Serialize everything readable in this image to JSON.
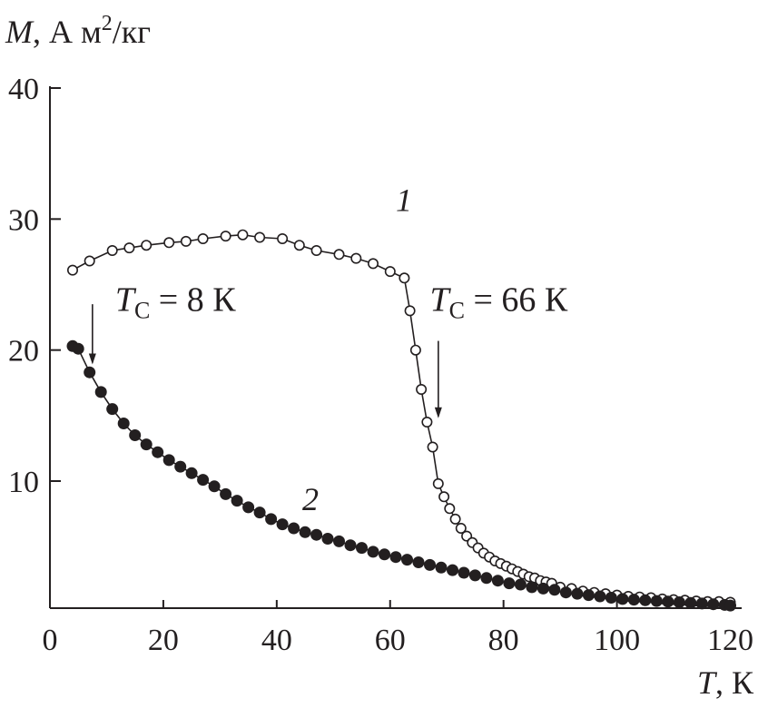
{
  "chart_data": {
    "type": "scatter",
    "ylabel": {
      "symbol": "M",
      "rest": ", А м",
      "sup": "2",
      "tail": "/кг"
    },
    "xlabel": {
      "symbol": "T",
      "rest": ", К"
    },
    "xlim": [
      0,
      122
    ],
    "ylim": [
      0.3,
      40
    ],
    "xticks": [
      0,
      20,
      40,
      60,
      80,
      100,
      120
    ],
    "yticks": [
      10,
      20,
      30,
      40
    ],
    "grid": false,
    "legend": "none",
    "series": [
      {
        "name": "1",
        "marker": "open-circle",
        "line": true,
        "x": [
          4,
          7,
          11,
          14,
          17,
          21,
          24,
          27,
          31,
          34,
          37,
          41,
          44,
          47,
          51,
          54,
          57,
          60,
          62.5,
          63.5,
          64.5,
          65.5,
          66.5,
          67.5,
          68.5,
          69.5,
          70.5,
          71.5,
          72.5,
          73.5,
          74.5,
          75.5,
          76.5,
          77.5,
          78.5,
          79.5,
          80.5,
          81.5,
          82.5,
          83.5,
          84.5,
          85.5,
          86.5,
          87.5,
          88.5,
          90,
          92,
          94,
          96,
          98,
          100,
          102,
          104,
          106,
          108,
          110,
          112,
          114,
          116,
          118,
          120
        ],
        "y": [
          26.1,
          26.8,
          27.6,
          27.8,
          28.0,
          28.2,
          28.3,
          28.5,
          28.7,
          28.8,
          28.6,
          28.5,
          28.0,
          27.6,
          27.3,
          27.0,
          26.6,
          26.0,
          25.5,
          23.0,
          20.0,
          17.0,
          14.5,
          12.6,
          9.8,
          8.8,
          7.9,
          7.1,
          6.4,
          5.8,
          5.3,
          4.9,
          4.5,
          4.2,
          3.9,
          3.7,
          3.5,
          3.3,
          3.1,
          2.9,
          2.7,
          2.6,
          2.4,
          2.3,
          2.2,
          1.9,
          1.8,
          1.6,
          1.5,
          1.4,
          1.3,
          1.2,
          1.15,
          1.1,
          1.0,
          0.95,
          0.9,
          0.85,
          0.8,
          0.8,
          0.75
        ],
        "labels": [
          {
            "text": "1",
            "x": 61,
            "y": 30.6
          }
        ]
      },
      {
        "name": "2",
        "marker": "filled-circle",
        "line": true,
        "x": [
          4,
          5,
          7,
          9,
          11,
          13,
          15,
          17,
          19,
          21,
          23,
          25,
          27,
          29,
          31,
          33,
          35,
          37,
          39,
          41,
          43,
          45,
          47,
          49,
          51,
          53,
          55,
          57,
          59,
          61,
          63,
          65,
          67,
          69,
          71,
          73,
          75,
          77,
          79,
          81,
          83,
          85,
          87,
          89,
          91,
          93,
          95,
          97,
          99,
          101,
          103,
          105,
          107,
          109,
          111,
          113,
          115,
          117,
          119,
          120
        ],
        "y": [
          20.3,
          20.1,
          18.3,
          16.8,
          15.5,
          14.4,
          13.5,
          12.8,
          12.2,
          11.6,
          11.1,
          10.6,
          10.1,
          9.6,
          9.0,
          8.5,
          8.0,
          7.6,
          7.1,
          6.7,
          6.4,
          6.1,
          5.9,
          5.6,
          5.4,
          5.1,
          4.9,
          4.6,
          4.4,
          4.2,
          4.0,
          3.8,
          3.6,
          3.4,
          3.2,
          3.0,
          2.8,
          2.6,
          2.4,
          2.2,
          2.1,
          1.9,
          1.8,
          1.7,
          1.5,
          1.4,
          1.3,
          1.2,
          1.1,
          1.0,
          0.95,
          0.9,
          0.85,
          0.8,
          0.75,
          0.7,
          0.65,
          0.6,
          0.55,
          0.5
        ],
        "labels": [
          {
            "text": "2",
            "x": 44.5,
            "y": 7.8
          }
        ]
      }
    ],
    "annotations": [
      {
        "symbol": "T",
        "sub": "С",
        "rest": " = 8 К",
        "text_x": 11.5,
        "text_y": 23.0,
        "arrow_x": 7.5,
        "arrow_from": 23.5,
        "arrow_to": 18.9
      },
      {
        "symbol": "T",
        "sub": "С",
        "rest": " = 66 К",
        "text_x": 67,
        "text_y": 23.0,
        "arrow_x": 68.5,
        "arrow_from": 20.7,
        "arrow_to": 14.8
      }
    ]
  }
}
